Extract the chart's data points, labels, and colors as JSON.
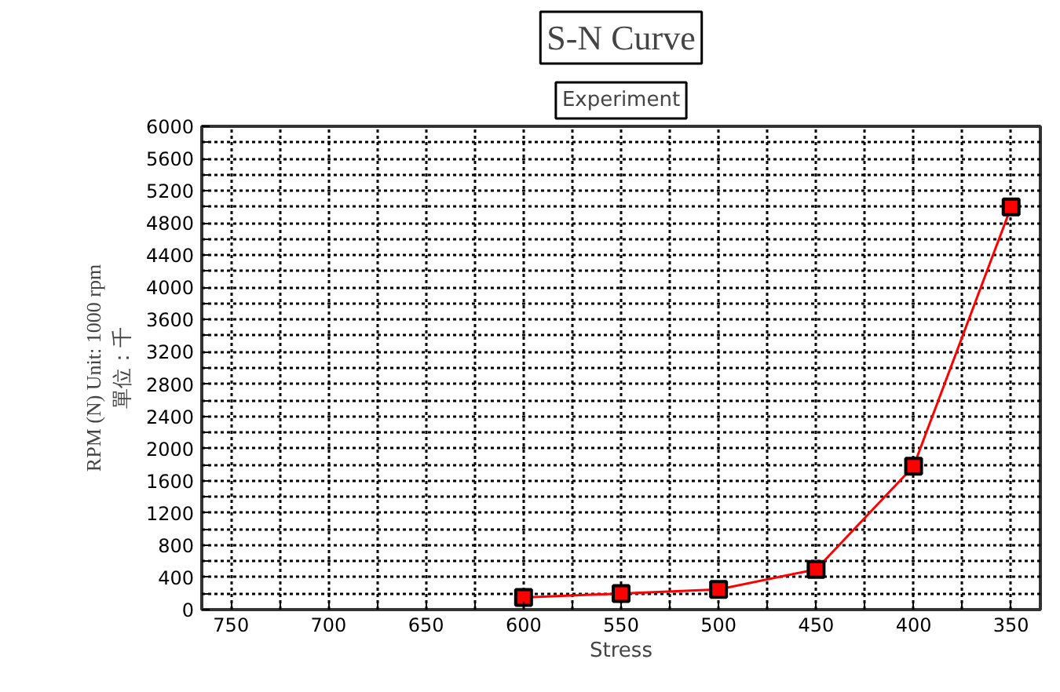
{
  "chart_data": {
    "type": "line",
    "title": "S-N Curve",
    "subtitle": "Experiment",
    "xlabel": "Stress",
    "ylabel": "RPM (N) Unit: 1000 rpm\n單位：千",
    "x": [
      600,
      550,
      500,
      450,
      400,
      350
    ],
    "series": [
      {
        "color": "#ff0000",
        "values": [
          150,
          200,
          250,
          500,
          1780,
          5000
        ]
      }
    ],
    "xlim": [
      765,
      335
    ],
    "xticks": [
      750,
      700,
      650,
      600,
      550,
      500,
      450,
      400,
      350
    ],
    "ylim": [
      0,
      6000
    ],
    "yticks": [
      0,
      400,
      800,
      1200,
      1600,
      2000,
      2400,
      2800,
      3200,
      3600,
      4000,
      4400,
      4800,
      5200,
      5600,
      6000
    ],
    "grid": true,
    "marker": "square",
    "line_style": "solid"
  }
}
